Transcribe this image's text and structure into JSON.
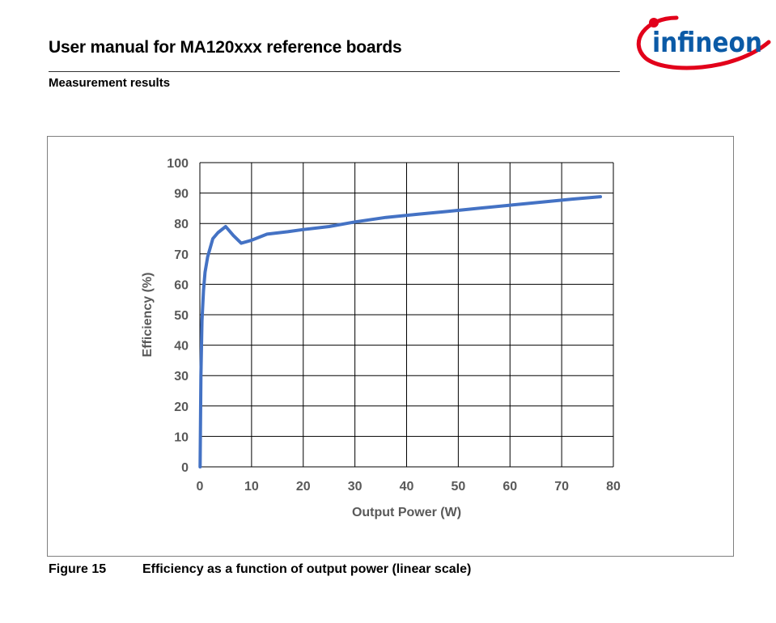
{
  "header": {
    "doc_title": "User manual for MA120xxx reference boards",
    "section_title": "Measurement results",
    "logo_text": "infineon",
    "brand_color": "#e2001a",
    "logo_text_color": "#0b5aa6"
  },
  "figure": {
    "number": "Figure 15",
    "caption": "Efficiency as a function of output power (linear scale)"
  },
  "chart_data": {
    "type": "line",
    "title": "",
    "xlabel": "Output Power (W)",
    "ylabel": "Efficiency (%)",
    "xlim": [
      0,
      80
    ],
    "ylim": [
      0,
      100
    ],
    "xticks": [
      0,
      10,
      20,
      30,
      40,
      50,
      60,
      70,
      80
    ],
    "yticks": [
      0,
      10,
      20,
      30,
      40,
      50,
      60,
      70,
      80,
      90,
      100
    ],
    "grid": true,
    "line_color": "#4472c4",
    "series": [
      {
        "x": [
          0.05,
          0.2,
          0.4,
          0.7,
          1.0,
          1.5,
          2.5,
          3.5,
          5.0,
          6.5,
          8.0,
          10,
          13,
          17,
          20,
          25,
          30,
          36,
          42,
          48,
          54,
          60,
          66,
          72,
          77.5
        ],
        "values": [
          0,
          30,
          48,
          58,
          64,
          69,
          75,
          77,
          79,
          76,
          73.5,
          74.5,
          76.5,
          77.3,
          78,
          79,
          80.5,
          82,
          83,
          84,
          85,
          86,
          87,
          88,
          88.8
        ]
      }
    ]
  }
}
